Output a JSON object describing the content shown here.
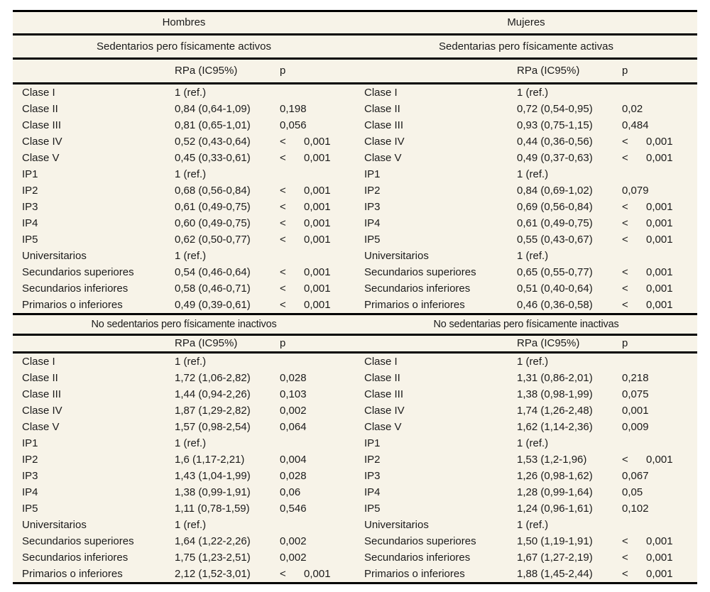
{
  "colors": {
    "page_background": "#ffffff",
    "table_background": "#f7f3e8",
    "rule": "#000000",
    "text": "#1b1b1b"
  },
  "groups": [
    {
      "label": "Hombres"
    },
    {
      "label": "Mujeres"
    }
  ],
  "columns": {
    "rpa": "RPa (IC95%)",
    "p": "p"
  },
  "sections": [
    {
      "left": {
        "title": "Sedentarios pero físicamente activos",
        "rows": [
          {
            "label": "Clase I",
            "rpa": "1 (ref.)",
            "p": ""
          },
          {
            "label": "Clase II",
            "rpa": "0,84 (0,64-1,09)",
            "p": "0,198"
          },
          {
            "label": "Clase III",
            "rpa": "0,81 (0,65-1,01)",
            "p": "0,056"
          },
          {
            "label": "Clase IV",
            "rpa": "0,52 (0,43-0,64)",
            "p": "< 0,001"
          },
          {
            "label": "Clase V",
            "rpa": "0,45 (0,33-0,61)",
            "p": "< 0,001"
          },
          {
            "label": "IP1",
            "rpa": "1 (ref.)",
            "p": ""
          },
          {
            "label": "IP2",
            "rpa": "0,68 (0,56-0,84)",
            "p": "< 0,001"
          },
          {
            "label": "IP3",
            "rpa": "0,61 (0,49-0,75)",
            "p": "< 0,001"
          },
          {
            "label": "IP4",
            "rpa": "0,60 (0,49-0,75)",
            "p": "< 0,001"
          },
          {
            "label": "IP5",
            "rpa": "0,62 (0,50-0,77)",
            "p": "< 0,001"
          },
          {
            "label": "Universitarios",
            "rpa": "1 (ref.)",
            "p": ""
          },
          {
            "label": "Secundarios superiores",
            "rpa": "0,54 (0,46-0,64)",
            "p": "< 0,001"
          },
          {
            "label": "Secundarios inferiores",
            "rpa": "0,58 (0,46-0,71)",
            "p": "< 0,001"
          },
          {
            "label": "Primarios o inferiores",
            "rpa": "0,49 (0,39-0,61)",
            "p": "< 0,001"
          }
        ]
      },
      "right": {
        "title": "Sedentarias pero físicamente activas",
        "rows": [
          {
            "label": "Clase I",
            "rpa": "1 (ref.)",
            "p": ""
          },
          {
            "label": "Clase II",
            "rpa": "0,72 (0,54-0,95)",
            "p": "0,02"
          },
          {
            "label": "Clase III",
            "rpa": "0,93 (0,75-1,15)",
            "p": "0,484"
          },
          {
            "label": "Clase IV",
            "rpa": "0,44 (0,36-0,56)",
            "p": "< 0,001"
          },
          {
            "label": "Clase V",
            "rpa": "0,49 (0,37-0,63)",
            "p": "< 0,001"
          },
          {
            "label": "IP1",
            "rpa": "1 (ref.)",
            "p": ""
          },
          {
            "label": "IP2",
            "rpa": "0,84 (0,69-1,02)",
            "p": "0,079"
          },
          {
            "label": "IP3",
            "rpa": "0,69 (0,56-0,84)",
            "p": "< 0,001"
          },
          {
            "label": "IP4",
            "rpa": "0,61 (0,49-0,75)",
            "p": "< 0,001"
          },
          {
            "label": "IP5",
            "rpa": "0,55 (0,43-0,67)",
            "p": "< 0,001"
          },
          {
            "label": "Universitarios",
            "rpa": "1 (ref.)",
            "p": ""
          },
          {
            "label": "Secundarios superiores",
            "rpa": "0,65 (0,55-0,77)",
            "p": "< 0,001"
          },
          {
            "label": "Secundarios inferiores",
            "rpa": "0,51 (0,40-0,64)",
            "p": "< 0,001"
          },
          {
            "label": "Primarios o inferiores",
            "rpa": "0,46 (0,36-0,58)",
            "p": "< 0,001"
          }
        ]
      }
    },
    {
      "left": {
        "title": "No sedentarios pero físicamente inactivos",
        "rows": [
          {
            "label": "Clase I",
            "rpa": "1 (ref.)",
            "p": ""
          },
          {
            "label": "Clase II",
            "rpa": "1,72 (1,06-2,82)",
            "p": "0,028"
          },
          {
            "label": "Clase III",
            "rpa": "1,44 (0,94-2,26)",
            "p": "0,103"
          },
          {
            "label": "Clase IV",
            "rpa": "1,87 (1,29-2,82)",
            "p": "0,002"
          },
          {
            "label": "Clase V",
            "rpa": "1,57 (0,98-2,54)",
            "p": "0,064"
          },
          {
            "label": "IP1",
            "rpa": "1 (ref.)",
            "p": ""
          },
          {
            "label": "IP2",
            "rpa": "1,6 (1,17-2,21)",
            "p": "0,004"
          },
          {
            "label": "IP3",
            "rpa": "1,43 (1,04-1,99)",
            "p": "0,028"
          },
          {
            "label": "IP4",
            "rpa": "1,38 (0,99-1,91)",
            "p": "0,06"
          },
          {
            "label": "IP5",
            "rpa": "1,11 (0,78-1,59)",
            "p": "0,546"
          },
          {
            "label": "Universitarios",
            "rpa": "1 (ref.)",
            "p": ""
          },
          {
            "label": "Secundarios superiores",
            "rpa": "1,64 (1,22-2,26)",
            "p": "0,002"
          },
          {
            "label": "Secundarios inferiores",
            "rpa": "1,75 (1,23-2,51)",
            "p": "0,002"
          },
          {
            "label": "Primarios o inferiores",
            "rpa": "2,12 (1,52-3,01)",
            "p": "< 0,001"
          }
        ]
      },
      "right": {
        "title": "No sedentarias pero físicamente inactivas",
        "rows": [
          {
            "label": "Clase I",
            "rpa": "1 (ref.)",
            "p": ""
          },
          {
            "label": "Clase II",
            "rpa": "1,31 (0,86-2,01)",
            "p": "0,218"
          },
          {
            "label": "Clase III",
            "rpa": "1,38 (0,98-1,99)",
            "p": "0,075"
          },
          {
            "label": "Clase IV",
            "rpa": "1,74 (1,26-2,48)",
            "p": "0,001"
          },
          {
            "label": "Clase V",
            "rpa": "1,62 (1,14-2,36)",
            "p": "0,009"
          },
          {
            "label": "IP1",
            "rpa": "1 (ref.)",
            "p": ""
          },
          {
            "label": "IP2",
            "rpa": "1,53 (1,2-1,96)",
            "p": "< 0,001"
          },
          {
            "label": "IP3",
            "rpa": "1,26 (0,98-1,62)",
            "p": "0,067"
          },
          {
            "label": "IP4",
            "rpa": "1,28 (0,99-1,64)",
            "p": "0,05"
          },
          {
            "label": "IP5",
            "rpa": "1,24 (0,96-1,61)",
            "p": "0,102"
          },
          {
            "label": "Universitarios",
            "rpa": "1 (ref.)",
            "p": ""
          },
          {
            "label": "Secundarios superiores",
            "rpa": "1,50 (1,19-1,91)",
            "p": "< 0,001"
          },
          {
            "label": "Secundarios inferiores",
            "rpa": "1,67 (1,27-2,19)",
            "p": "< 0,001"
          },
          {
            "label": "Primarios o inferiores",
            "rpa": "1,88 (1,45-2,44)",
            "p": "< 0,001"
          }
        ]
      }
    }
  ]
}
